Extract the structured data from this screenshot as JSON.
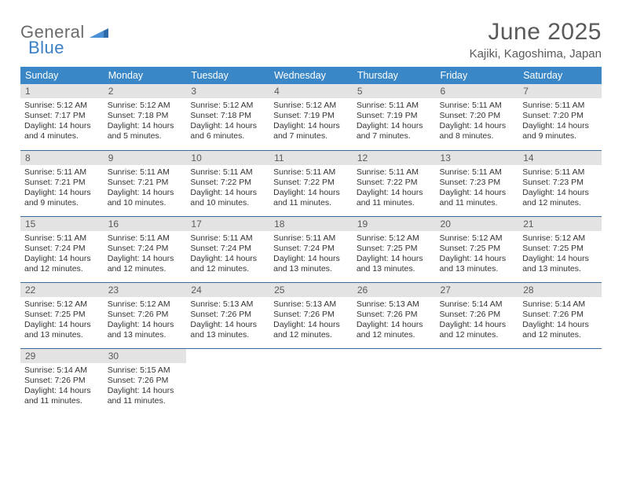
{
  "logo": {
    "word1": "General",
    "word2": "Blue"
  },
  "title": "June 2025",
  "location": "Kajiki, Kagoshima, Japan",
  "colors": {
    "header_bg": "#3a87c7",
    "header_text": "#ffffff",
    "daynum_bg": "#e3e3e3",
    "daynum_text": "#5a5a5a",
    "row_border": "#3a6a9a",
    "title_color": "#5a5a5a",
    "logo_gray": "#6b6b6b",
    "logo_blue": "#3a7fc4"
  },
  "weekdays": [
    "Sunday",
    "Monday",
    "Tuesday",
    "Wednesday",
    "Thursday",
    "Friday",
    "Saturday"
  ],
  "weeks": [
    [
      {
        "n": "1",
        "sr": "5:12 AM",
        "ss": "7:17 PM",
        "dl": "14 hours and 4 minutes."
      },
      {
        "n": "2",
        "sr": "5:12 AM",
        "ss": "7:18 PM",
        "dl": "14 hours and 5 minutes."
      },
      {
        "n": "3",
        "sr": "5:12 AM",
        "ss": "7:18 PM",
        "dl": "14 hours and 6 minutes."
      },
      {
        "n": "4",
        "sr": "5:12 AM",
        "ss": "7:19 PM",
        "dl": "14 hours and 7 minutes."
      },
      {
        "n": "5",
        "sr": "5:11 AM",
        "ss": "7:19 PM",
        "dl": "14 hours and 7 minutes."
      },
      {
        "n": "6",
        "sr": "5:11 AM",
        "ss": "7:20 PM",
        "dl": "14 hours and 8 minutes."
      },
      {
        "n": "7",
        "sr": "5:11 AM",
        "ss": "7:20 PM",
        "dl": "14 hours and 9 minutes."
      }
    ],
    [
      {
        "n": "8",
        "sr": "5:11 AM",
        "ss": "7:21 PM",
        "dl": "14 hours and 9 minutes."
      },
      {
        "n": "9",
        "sr": "5:11 AM",
        "ss": "7:21 PM",
        "dl": "14 hours and 10 minutes."
      },
      {
        "n": "10",
        "sr": "5:11 AM",
        "ss": "7:22 PM",
        "dl": "14 hours and 10 minutes."
      },
      {
        "n": "11",
        "sr": "5:11 AM",
        "ss": "7:22 PM",
        "dl": "14 hours and 11 minutes."
      },
      {
        "n": "12",
        "sr": "5:11 AM",
        "ss": "7:22 PM",
        "dl": "14 hours and 11 minutes."
      },
      {
        "n": "13",
        "sr": "5:11 AM",
        "ss": "7:23 PM",
        "dl": "14 hours and 11 minutes."
      },
      {
        "n": "14",
        "sr": "5:11 AM",
        "ss": "7:23 PM",
        "dl": "14 hours and 12 minutes."
      }
    ],
    [
      {
        "n": "15",
        "sr": "5:11 AM",
        "ss": "7:24 PM",
        "dl": "14 hours and 12 minutes."
      },
      {
        "n": "16",
        "sr": "5:11 AM",
        "ss": "7:24 PM",
        "dl": "14 hours and 12 minutes."
      },
      {
        "n": "17",
        "sr": "5:11 AM",
        "ss": "7:24 PM",
        "dl": "14 hours and 12 minutes."
      },
      {
        "n": "18",
        "sr": "5:11 AM",
        "ss": "7:24 PM",
        "dl": "14 hours and 13 minutes."
      },
      {
        "n": "19",
        "sr": "5:12 AM",
        "ss": "7:25 PM",
        "dl": "14 hours and 13 minutes."
      },
      {
        "n": "20",
        "sr": "5:12 AM",
        "ss": "7:25 PM",
        "dl": "14 hours and 13 minutes."
      },
      {
        "n": "21",
        "sr": "5:12 AM",
        "ss": "7:25 PM",
        "dl": "14 hours and 13 minutes."
      }
    ],
    [
      {
        "n": "22",
        "sr": "5:12 AM",
        "ss": "7:25 PM",
        "dl": "14 hours and 13 minutes."
      },
      {
        "n": "23",
        "sr": "5:12 AM",
        "ss": "7:26 PM",
        "dl": "14 hours and 13 minutes."
      },
      {
        "n": "24",
        "sr": "5:13 AM",
        "ss": "7:26 PM",
        "dl": "14 hours and 13 minutes."
      },
      {
        "n": "25",
        "sr": "5:13 AM",
        "ss": "7:26 PM",
        "dl": "14 hours and 12 minutes."
      },
      {
        "n": "26",
        "sr": "5:13 AM",
        "ss": "7:26 PM",
        "dl": "14 hours and 12 minutes."
      },
      {
        "n": "27",
        "sr": "5:14 AM",
        "ss": "7:26 PM",
        "dl": "14 hours and 12 minutes."
      },
      {
        "n": "28",
        "sr": "5:14 AM",
        "ss": "7:26 PM",
        "dl": "14 hours and 12 minutes."
      }
    ],
    [
      {
        "n": "29",
        "sr": "5:14 AM",
        "ss": "7:26 PM",
        "dl": "14 hours and 11 minutes."
      },
      {
        "n": "30",
        "sr": "5:15 AM",
        "ss": "7:26 PM",
        "dl": "14 hours and 11 minutes."
      },
      null,
      null,
      null,
      null,
      null
    ]
  ],
  "labels": {
    "sunrise": "Sunrise:",
    "sunset": "Sunset:",
    "daylight": "Daylight:"
  }
}
